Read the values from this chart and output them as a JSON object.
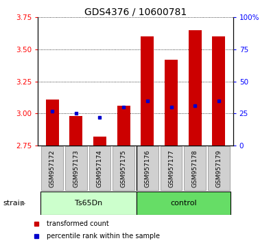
{
  "title": "GDS4376 / 10600781",
  "samples": [
    "GSM957172",
    "GSM957173",
    "GSM957174",
    "GSM957175",
    "GSM957176",
    "GSM957177",
    "GSM957178",
    "GSM957179"
  ],
  "red_bar_tops": [
    3.11,
    2.98,
    2.82,
    3.06,
    3.6,
    3.42,
    3.65,
    3.6
  ],
  "blue_dot_values": [
    3.02,
    3.0,
    2.97,
    3.05,
    3.1,
    3.05,
    3.06,
    3.1
  ],
  "ymin": 2.75,
  "ymax": 3.75,
  "yticks_left": [
    2.75,
    3.0,
    3.25,
    3.5,
    3.75
  ],
  "yticks_right_vals": [
    0,
    25,
    50,
    75,
    100
  ],
  "bar_color": "#cc0000",
  "dot_color": "#0000cc",
  "bar_bottom": 2.75,
  "legend_label_red": "transformed count",
  "legend_label_blue": "percentile rank within the sample",
  "strain_label": "strain",
  "group_label_1": "Ts65Dn",
  "group_label_2": "control",
  "group1_color": "#ccffcc",
  "group2_color": "#66dd66",
  "sample_bg_color": "#d0d0d0",
  "title_fontsize": 10,
  "axis_fontsize": 8,
  "tick_fontsize": 7.5,
  "sample_fontsize": 6.5
}
